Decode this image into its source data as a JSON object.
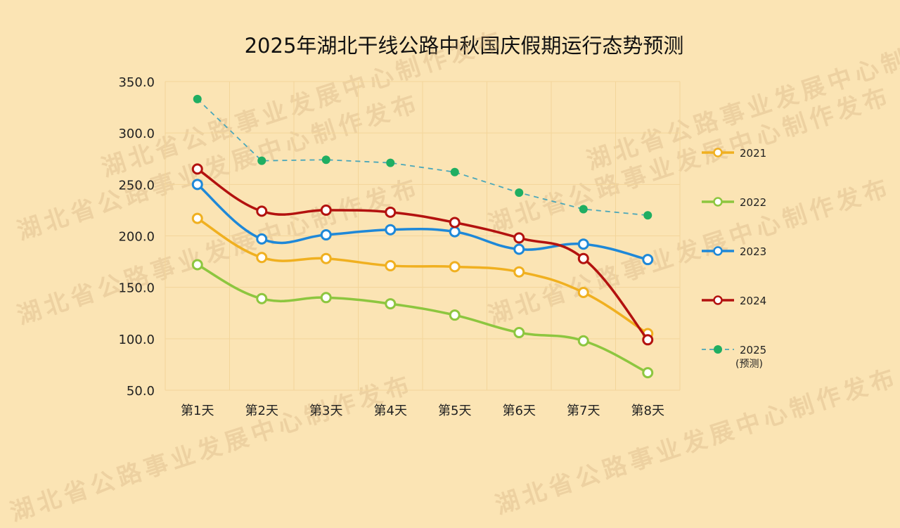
{
  "watermark": "湖北省公路事业发展中心制作发布",
  "chart_data": {
    "type": "line",
    "title": "2025年湖北干线公路中秋国庆假期运行态势预测",
    "xlabel": "",
    "ylabel": "",
    "categories": [
      "第1天",
      "第2天",
      "第3天",
      "第4天",
      "第5天",
      "第6天",
      "第7天",
      "第8天"
    ],
    "ylim": [
      50,
      350
    ],
    "yticks": [
      "50.0",
      "100.0",
      "150.0",
      "200.0",
      "250.0",
      "300.0",
      "350.0"
    ],
    "grid": true,
    "legend_position": "right",
    "series": [
      {
        "name": "2021",
        "color": "#f0b020",
        "style": "solid",
        "smooth": true,
        "values": [
          217,
          179,
          178,
          171,
          170,
          165,
          145,
          105
        ]
      },
      {
        "name": "2022",
        "color": "#8dc63f",
        "style": "solid",
        "smooth": true,
        "values": [
          172,
          139,
          140,
          134,
          123,
          106,
          98,
          67
        ]
      },
      {
        "name": "2023",
        "color": "#1e88d8",
        "style": "solid",
        "smooth": true,
        "values": [
          250,
          197,
          201,
          206,
          204,
          187,
          192,
          177
        ]
      },
      {
        "name": "2024",
        "color": "#b3120f",
        "style": "solid",
        "smooth": true,
        "values": [
          265,
          224,
          225,
          223,
          213,
          198,
          178,
          99
        ]
      },
      {
        "name": "2025",
        "sub": "(预测)",
        "color": "#1fae62",
        "line_color": "#4ba7b9",
        "style": "dashed",
        "smooth": false,
        "values": [
          333,
          273,
          274,
          271,
          262,
          242,
          226,
          220
        ]
      }
    ]
  }
}
